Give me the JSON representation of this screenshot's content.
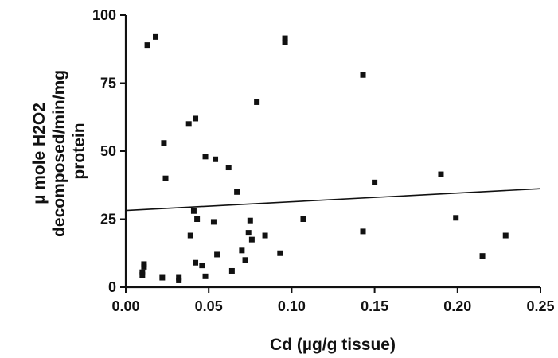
{
  "chart_data": {
    "type": "scatter",
    "title": "",
    "xlabel": "Cd (µg/g tissue)",
    "ylabel_lines": [
      "µ mole H2O2",
      "decomposed/min/mg",
      "protein"
    ],
    "xlim": [
      0,
      0.25
    ],
    "ylim": [
      0,
      100
    ],
    "x_ticks": [
      0.0,
      0.05,
      0.1,
      0.15,
      0.2,
      0.25
    ],
    "x_tick_labels": [
      "0.00",
      "0.05",
      "0.10",
      "0.15",
      "0.20",
      "0.25"
    ],
    "y_ticks": [
      0,
      25,
      50,
      75,
      100
    ],
    "y_tick_labels": [
      "0",
      "25",
      "50",
      "75",
      "100"
    ],
    "grid": false,
    "legend": "none",
    "colors": {
      "marker": "#111111",
      "line": "#111111",
      "axis": "#111111"
    },
    "series": [
      {
        "points": [
          [
            0.01,
            4.5
          ],
          [
            0.01,
            5.5
          ],
          [
            0.011,
            7.5
          ],
          [
            0.011,
            8.5
          ],
          [
            0.013,
            89
          ],
          [
            0.018,
            92
          ],
          [
            0.022,
            3.5
          ],
          [
            0.023,
            53
          ],
          [
            0.024,
            40
          ],
          [
            0.032,
            2.5
          ],
          [
            0.032,
            3.5
          ],
          [
            0.038,
            60
          ],
          [
            0.039,
            19
          ],
          [
            0.041,
            28
          ],
          [
            0.042,
            9
          ],
          [
            0.042,
            62
          ],
          [
            0.043,
            25
          ],
          [
            0.046,
            8
          ],
          [
            0.048,
            48
          ],
          [
            0.048,
            4
          ],
          [
            0.053,
            24
          ],
          [
            0.054,
            47
          ],
          [
            0.055,
            12
          ],
          [
            0.062,
            44
          ],
          [
            0.064,
            6
          ],
          [
            0.067,
            35
          ],
          [
            0.07,
            13.5
          ],
          [
            0.072,
            10
          ],
          [
            0.074,
            20
          ],
          [
            0.075,
            24.5
          ],
          [
            0.076,
            17.5
          ],
          [
            0.079,
            68
          ],
          [
            0.084,
            19
          ],
          [
            0.093,
            12.5
          ],
          [
            0.096,
            90
          ],
          [
            0.096,
            91.5
          ],
          [
            0.107,
            25
          ],
          [
            0.143,
            20.5
          ],
          [
            0.143,
            78
          ],
          [
            0.15,
            38.5
          ],
          [
            0.19,
            41.5
          ],
          [
            0.199,
            25.5
          ],
          [
            0.215,
            11.5
          ],
          [
            0.229,
            19
          ]
        ]
      }
    ],
    "fit_line": {
      "x": [
        0.0,
        0.25
      ],
      "y": [
        28.2,
        36.2
      ]
    }
  }
}
